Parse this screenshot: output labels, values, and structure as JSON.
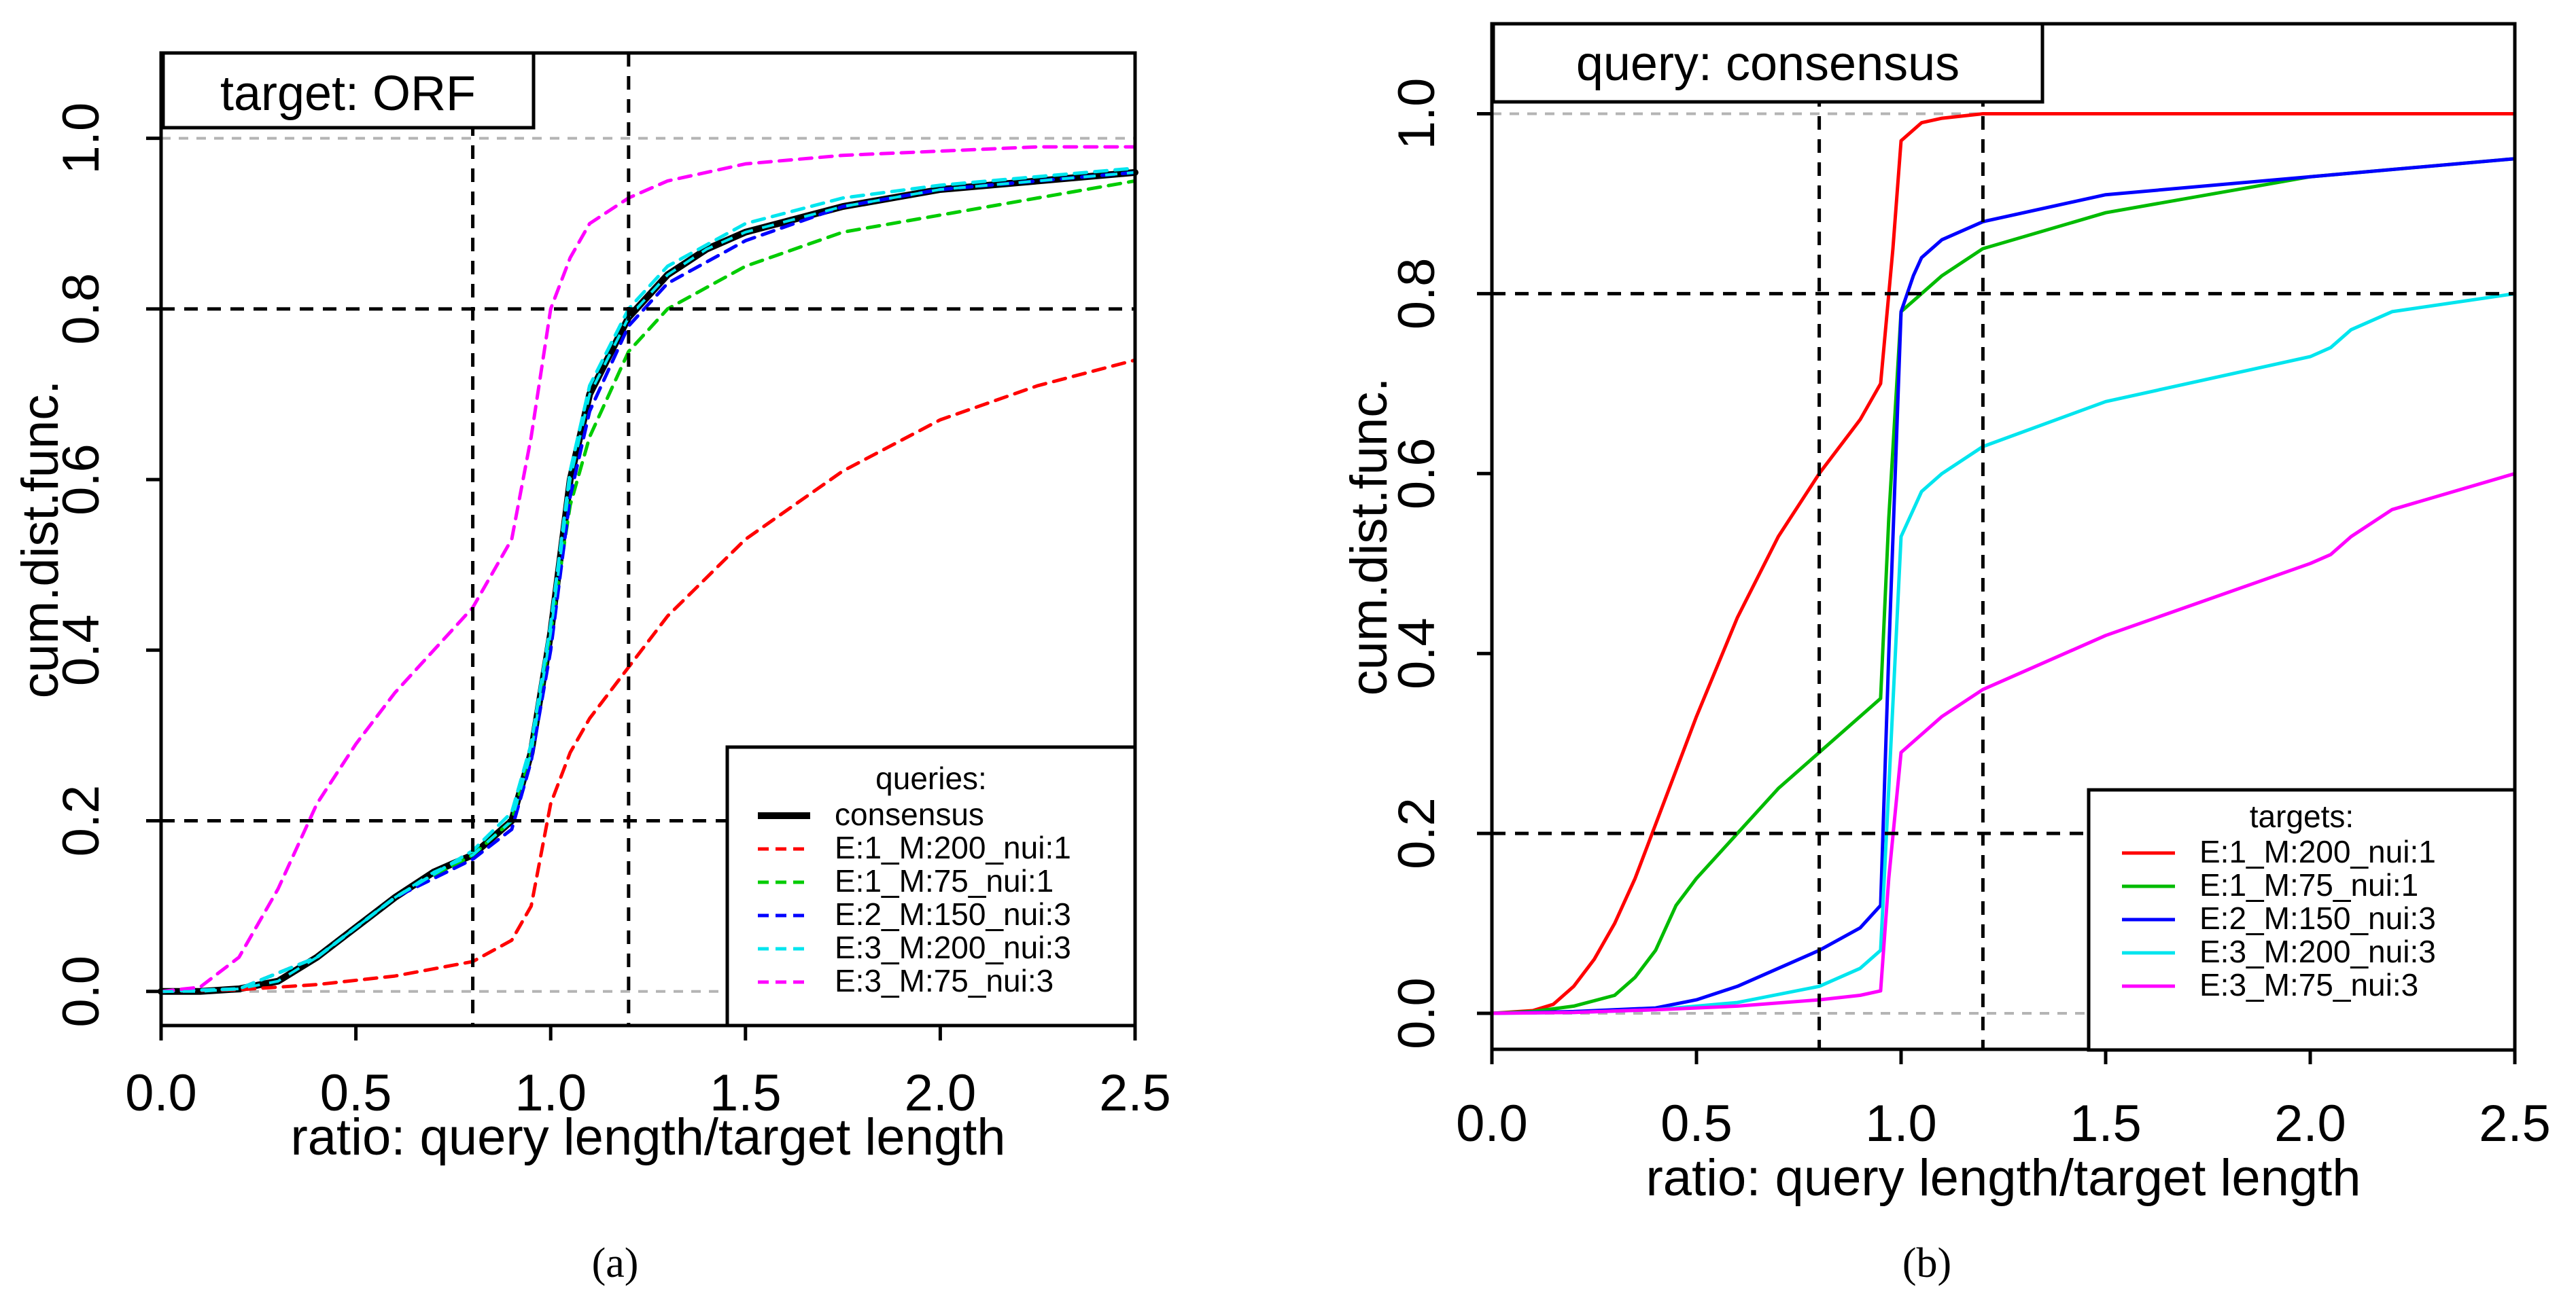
{
  "chart_data": [
    {
      "panel": "a",
      "type": "line",
      "caption": "(a)",
      "title": "target: ORF",
      "xlabel": "ratio: query length/target length",
      "ylabel": "cum.dist.func.",
      "xlim": [
        0.0,
        2.5
      ],
      "ylim": [
        -0.04,
        1.1
      ],
      "xticks": [
        "0.0",
        "0.5",
        "1.0",
        "1.5",
        "2.0",
        "2.5"
      ],
      "yticks": [
        "0.0",
        "0.2",
        "0.4",
        "0.6",
        "0.8",
        "1.0"
      ],
      "hlines_grey": [
        0.0,
        1.0
      ],
      "hlines_dashed": [
        0.2,
        0.8
      ],
      "vlines_dashed": [
        0.8,
        1.2
      ],
      "legend": {
        "title": "queries:",
        "position": "bottom-right"
      },
      "series": [
        {
          "name": "consensus",
          "color": "#000000",
          "style": "solid-thick",
          "x": [
            0,
            0.1,
            0.2,
            0.3,
            0.4,
            0.5,
            0.6,
            0.7,
            0.8,
            0.9,
            0.95,
            1.0,
            1.05,
            1.1,
            1.2,
            1.3,
            1.4,
            1.5,
            1.75,
            2.0,
            2.25,
            2.5
          ],
          "y": [
            0,
            0,
            0.003,
            0.012,
            0.04,
            0.075,
            0.11,
            0.14,
            0.16,
            0.2,
            0.28,
            0.42,
            0.6,
            0.7,
            0.79,
            0.84,
            0.87,
            0.89,
            0.92,
            0.94,
            0.95,
            0.96
          ]
        },
        {
          "name": "E:1_M:200_nui:1",
          "color": "#ff0000",
          "style": "dashed",
          "x": [
            0,
            0.2,
            0.4,
            0.6,
            0.8,
            0.9,
            0.95,
            1.0,
            1.05,
            1.1,
            1.2,
            1.3,
            1.5,
            1.75,
            2.0,
            2.25,
            2.5
          ],
          "y": [
            0,
            0.002,
            0.008,
            0.018,
            0.035,
            0.06,
            0.1,
            0.22,
            0.28,
            0.32,
            0.38,
            0.44,
            0.53,
            0.61,
            0.67,
            0.71,
            0.74
          ]
        },
        {
          "name": "E:1_M:75_nui:1",
          "color": "#00cc00",
          "style": "dashed",
          "x": [
            0,
            0.2,
            0.4,
            0.6,
            0.8,
            0.9,
            0.95,
            1.0,
            1.05,
            1.1,
            1.2,
            1.3,
            1.5,
            1.75,
            2.0,
            2.25,
            2.5
          ],
          "y": [
            0,
            0.003,
            0.04,
            0.11,
            0.16,
            0.2,
            0.28,
            0.42,
            0.57,
            0.65,
            0.75,
            0.8,
            0.85,
            0.89,
            0.91,
            0.93,
            0.95
          ]
        },
        {
          "name": "E:2_M:150_nui:3",
          "color": "#0000ff",
          "style": "dashed",
          "x": [
            0,
            0.2,
            0.4,
            0.6,
            0.8,
            0.9,
            0.95,
            1.0,
            1.05,
            1.1,
            1.2,
            1.3,
            1.5,
            1.75,
            2.0,
            2.25,
            2.5
          ],
          "y": [
            0,
            0.003,
            0.04,
            0.11,
            0.155,
            0.19,
            0.27,
            0.4,
            0.58,
            0.68,
            0.78,
            0.83,
            0.88,
            0.92,
            0.94,
            0.95,
            0.96
          ]
        },
        {
          "name": "E:3_M:200_nui:3",
          "color": "#00e5ee",
          "style": "dashed",
          "x": [
            0,
            0.2,
            0.4,
            0.6,
            0.8,
            0.9,
            0.95,
            1.0,
            1.05,
            1.1,
            1.2,
            1.3,
            1.5,
            1.75,
            2.0,
            2.25,
            2.5
          ],
          "y": [
            0,
            0.003,
            0.04,
            0.11,
            0.165,
            0.21,
            0.29,
            0.43,
            0.61,
            0.71,
            0.8,
            0.85,
            0.9,
            0.93,
            0.945,
            0.955,
            0.965
          ]
        },
        {
          "name": "E:3_M:75_nui:3",
          "color": "#ff00ff",
          "style": "dashed",
          "x": [
            0,
            0.1,
            0.2,
            0.3,
            0.4,
            0.5,
            0.6,
            0.7,
            0.8,
            0.9,
            0.95,
            1.0,
            1.05,
            1.1,
            1.2,
            1.3,
            1.5,
            1.75,
            2.0,
            2.25,
            2.5
          ],
          "y": [
            0,
            0.005,
            0.04,
            0.12,
            0.22,
            0.29,
            0.35,
            0.4,
            0.45,
            0.53,
            0.65,
            0.8,
            0.86,
            0.9,
            0.93,
            0.95,
            0.97,
            0.98,
            0.985,
            0.99,
            0.99
          ]
        }
      ]
    },
    {
      "panel": "b",
      "type": "line",
      "caption": "(b)",
      "title": "query: consensus",
      "xlabel": "ratio: query length/target length",
      "ylabel": "cum.dist.func.",
      "xlim": [
        0.0,
        2.5
      ],
      "ylim": [
        -0.04,
        1.1
      ],
      "xticks": [
        "0.0",
        "0.5",
        "1.0",
        "1.5",
        "2.0",
        "2.5"
      ],
      "yticks": [
        "0.0",
        "0.2",
        "0.4",
        "0.6",
        "0.8",
        "1.0"
      ],
      "hlines_grey": [
        0.0,
        1.0
      ],
      "hlines_dashed": [
        0.2,
        0.8
      ],
      "vlines_dashed": [
        0.8,
        1.2
      ],
      "legend": {
        "title": "targets:",
        "position": "bottom-right"
      },
      "series": [
        {
          "name": "E:1_M:200_nui:1",
          "color": "#ff0000",
          "style": "solid",
          "x": [
            0,
            0.1,
            0.15,
            0.2,
            0.25,
            0.3,
            0.35,
            0.4,
            0.5,
            0.6,
            0.7,
            0.8,
            0.9,
            0.95,
            0.98,
            1.0,
            1.05,
            1.1,
            1.2,
            1.5,
            2.0,
            2.5
          ],
          "y": [
            0,
            0.003,
            0.01,
            0.03,
            0.06,
            0.1,
            0.15,
            0.21,
            0.33,
            0.44,
            0.53,
            0.6,
            0.66,
            0.7,
            0.85,
            0.97,
            0.99,
            0.995,
            1.0,
            1.0,
            1.0,
            1.0
          ]
        },
        {
          "name": "E:1_M:75_nui:1",
          "color": "#00bb00",
          "style": "solid",
          "x": [
            0,
            0.1,
            0.2,
            0.3,
            0.35,
            0.4,
            0.45,
            0.5,
            0.6,
            0.7,
            0.8,
            0.9,
            0.95,
            0.97,
            1.0,
            1.05,
            1.1,
            1.2,
            1.5,
            2.0,
            2.5
          ],
          "y": [
            0,
            0.002,
            0.008,
            0.02,
            0.04,
            0.07,
            0.12,
            0.15,
            0.2,
            0.25,
            0.29,
            0.33,
            0.35,
            0.55,
            0.78,
            0.8,
            0.82,
            0.85,
            0.89,
            0.93,
            0.95
          ]
        },
        {
          "name": "E:2_M:150_nui:3",
          "color": "#0000ff",
          "style": "solid",
          "x": [
            0,
            0.2,
            0.4,
            0.5,
            0.6,
            0.7,
            0.8,
            0.9,
            0.95,
            0.97,
            1.0,
            1.03,
            1.05,
            1.1,
            1.2,
            1.5,
            2.0,
            2.5
          ],
          "y": [
            0,
            0.002,
            0.006,
            0.015,
            0.03,
            0.05,
            0.07,
            0.095,
            0.12,
            0.4,
            0.78,
            0.82,
            0.84,
            0.86,
            0.88,
            0.91,
            0.93,
            0.95
          ]
        },
        {
          "name": "E:3_M:200_nui:3",
          "color": "#00e5ee",
          "style": "solid",
          "x": [
            0,
            0.2,
            0.4,
            0.6,
            0.8,
            0.9,
            0.95,
            0.97,
            1.0,
            1.05,
            1.1,
            1.2,
            1.5,
            2.0,
            2.05,
            2.1,
            2.2,
            2.5
          ],
          "y": [
            0,
            0.001,
            0.004,
            0.012,
            0.03,
            0.05,
            0.07,
            0.25,
            0.53,
            0.58,
            0.6,
            0.63,
            0.68,
            0.73,
            0.74,
            0.76,
            0.78,
            0.8
          ]
        },
        {
          "name": "E:3_M:75_nui:3",
          "color": "#ff00ff",
          "style": "solid",
          "x": [
            0,
            0.2,
            0.4,
            0.6,
            0.8,
            0.9,
            0.95,
            0.97,
            1.0,
            1.05,
            1.1,
            1.2,
            1.5,
            2.0,
            2.05,
            2.1,
            2.2,
            2.5
          ],
          "y": [
            0,
            0.001,
            0.004,
            0.008,
            0.015,
            0.02,
            0.025,
            0.15,
            0.29,
            0.31,
            0.33,
            0.36,
            0.42,
            0.5,
            0.51,
            0.53,
            0.56,
            0.6
          ]
        }
      ]
    }
  ]
}
